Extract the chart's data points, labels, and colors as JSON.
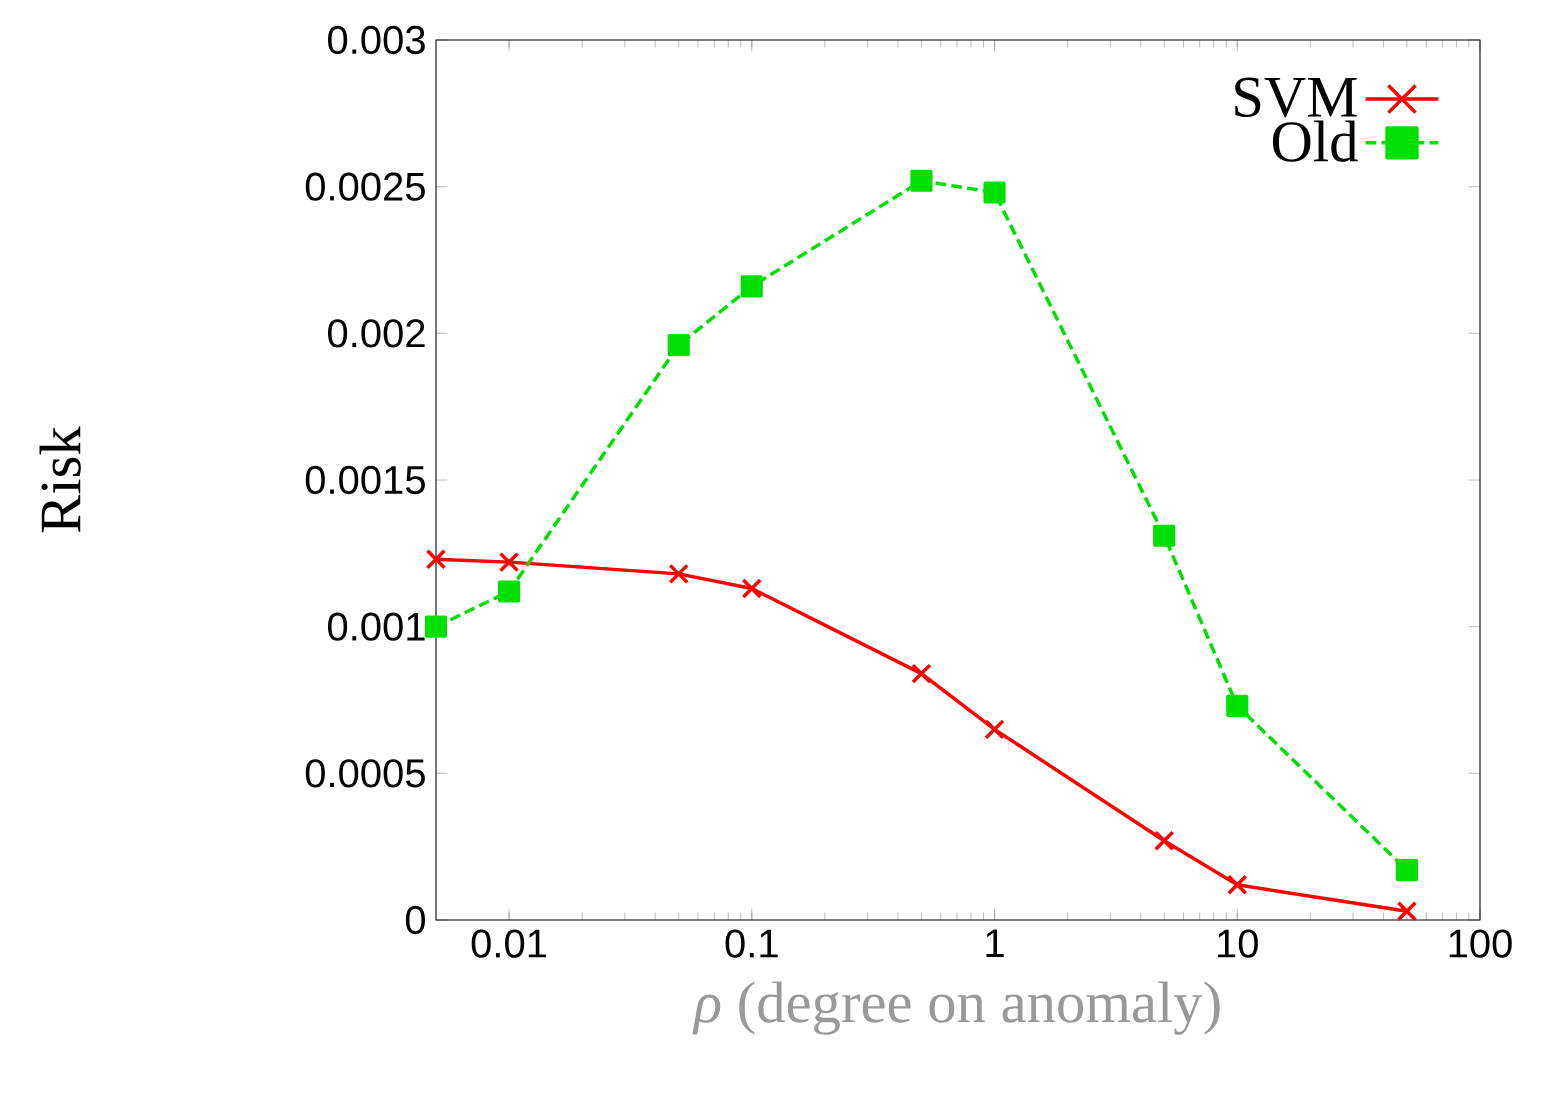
{
  "chart_data": {
    "type": "line",
    "xlabel": "*ρ* (degree on anomaly)",
    "ylabel": "Risk",
    "log": "x",
    "xlim": [
      0.005,
      100
    ],
    "ylim": [
      0,
      0.003
    ],
    "xticks": [
      0.01,
      0.1,
      1,
      10,
      100
    ],
    "yticks": [
      0,
      0.0005,
      0.001,
      0.0015,
      0.002,
      0.0025,
      0.003
    ],
    "x": [
      0.005,
      0.01,
      0.05,
      0.1,
      0.5,
      1,
      5,
      10,
      50
    ],
    "legend": "top right",
    "grid": false,
    "series": [
      {
        "name": "SVM",
        "color": "#ff0000",
        "marker": "cross",
        "line_style": "solid",
        "values": [
          0.00123,
          0.00122,
          0.00118,
          0.00113,
          0.00084,
          0.00065,
          0.00027,
          0.00012,
          3e-05
        ]
      },
      {
        "name": "Old",
        "color": "#00e000",
        "marker": "square",
        "line_style": "dashed",
        "values": [
          0.001,
          0.00112,
          0.00196,
          0.00216,
          0.00252,
          0.00248,
          0.00131,
          0.00073,
          0.00017
        ]
      }
    ]
  }
}
